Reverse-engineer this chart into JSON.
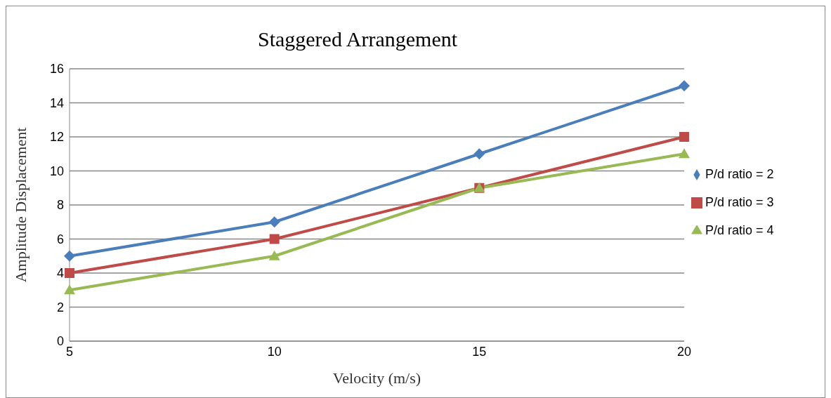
{
  "chart_data": {
    "type": "line",
    "title": "Staggered Arrangement",
    "xlabel": "Velocity  (m/s)",
    "ylabel": "Amplitude  Displacement",
    "categories": [
      "5",
      "10",
      "15",
      "20"
    ],
    "series": [
      {
        "name": "P/d ratio = 2",
        "color": "#4a7ebb",
        "marker": "diamond",
        "values": [
          5,
          7,
          11,
          15
        ]
      },
      {
        "name": "P/d ratio = 3",
        "color": "#be4b48",
        "marker": "square",
        "values": [
          4,
          6,
          9,
          12
        ]
      },
      {
        "name": "P/d ratio = 4",
        "color": "#98b954",
        "marker": "triangle",
        "values": [
          3,
          5,
          9,
          11
        ]
      }
    ],
    "ylim": [
      0,
      16
    ],
    "yticks": [
      0,
      2,
      4,
      6,
      8,
      10,
      12,
      14,
      16
    ],
    "grid": "y",
    "legend": "right"
  }
}
